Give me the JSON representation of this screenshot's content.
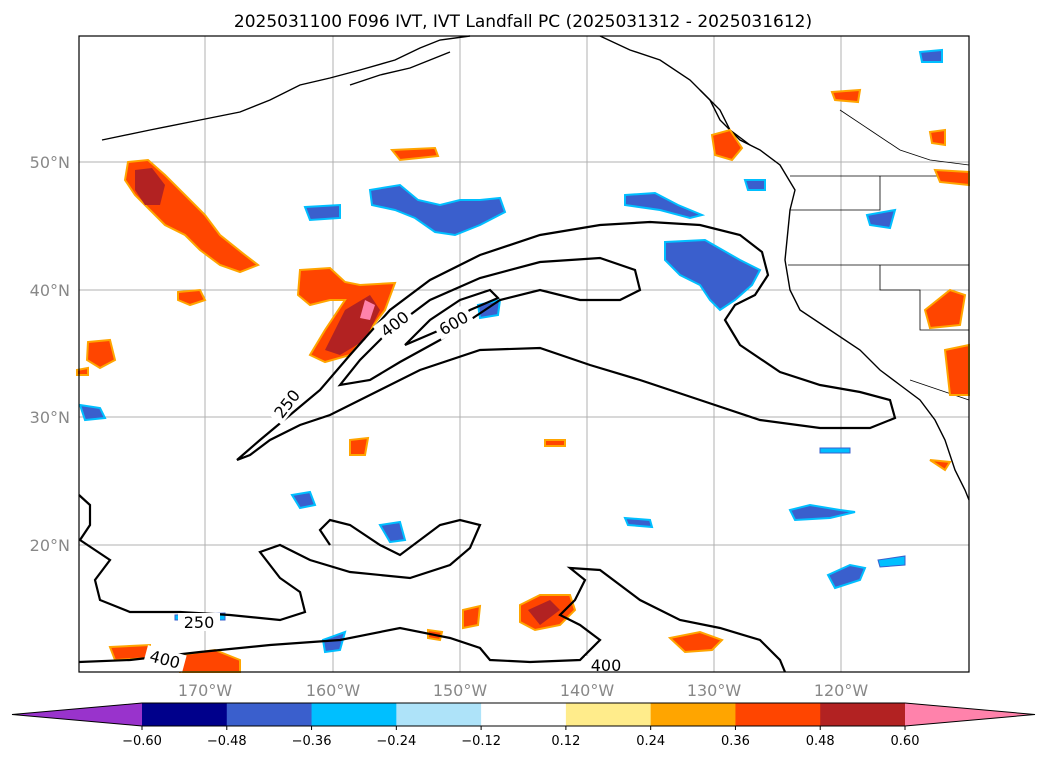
{
  "title": "2025031100 F096 IVT, IVT Landfall PC (2025031312 - 2025031612)",
  "lat_labels": [
    "50°N",
    "40°N",
    "30°N",
    "20°N"
  ],
  "lon_labels": [
    "170°W",
    "160°W",
    "150°W",
    "140°W",
    "130°W",
    "120°W"
  ],
  "contour_labels": [
    "250",
    "400",
    "600",
    "250",
    "400",
    "400"
  ],
  "colorbar": {
    "ticks": [
      "−0.60",
      "−0.48",
      "−0.36",
      "−0.24",
      "−0.12",
      "0.12",
      "0.24",
      "0.36",
      "0.48",
      "0.60"
    ],
    "colors": [
      "#9933cc",
      "#00008b",
      "#3a5fcd",
      "#00bfff",
      "#aee3f9",
      "#ffffff",
      "#ffec8b",
      "#ffa500",
      "#ff4500",
      "#b22222",
      "#ff82ab"
    ]
  }
}
